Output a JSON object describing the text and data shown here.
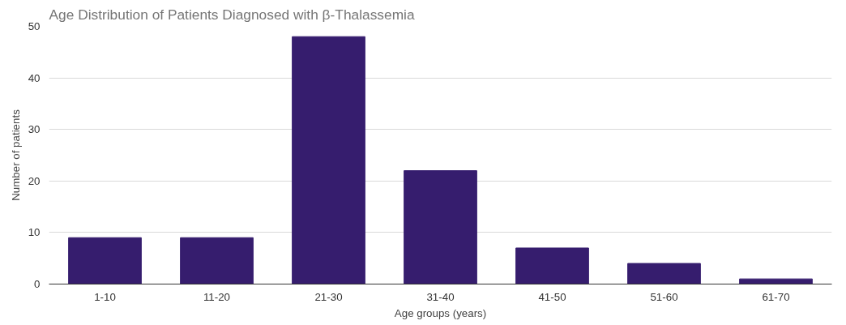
{
  "chart_data": {
    "type": "bar",
    "title": "Age Distribution of Patients Diagnosed with β-Thalassemia",
    "xlabel": "Age groups (years)",
    "ylabel": "Number of patients",
    "categories": [
      "1-10",
      "11-20",
      "21-30",
      "31-40",
      "41-50",
      "51-60",
      "61-70"
    ],
    "values": [
      9,
      9,
      48,
      22,
      7,
      4,
      1
    ],
    "color": "#361d6e",
    "ylim": [
      0,
      50
    ],
    "yticks": [
      0,
      10,
      20,
      30,
      40,
      50
    ],
    "grid": "y"
  }
}
